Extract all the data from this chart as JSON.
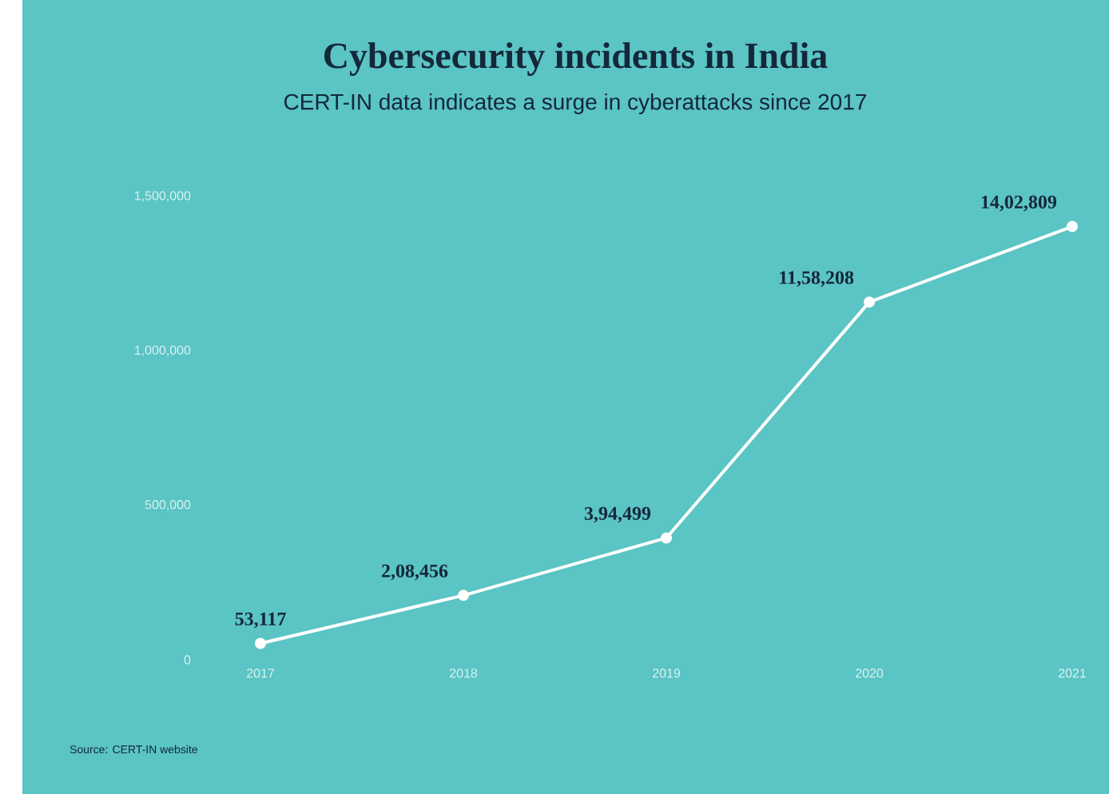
{
  "chart_data": {
    "type": "line",
    "title": "Cybersecurity incidents in India",
    "subtitle": "CERT-IN data indicates a surge in cyberattacks since 2017",
    "categories": [
      "2017",
      "2018",
      "2019",
      "2020",
      "2021"
    ],
    "series": [
      {
        "color": "#ffffff",
        "values": [
          53117,
          208456,
          394499,
          1158208,
          1402809
        ],
        "value_labels": [
          "53,117",
          "2,08,456",
          "3,94,499",
          "11,58,208",
          "14,02,809"
        ]
      }
    ],
    "ylim": [
      0,
      1500000
    ],
    "yticks": [
      0,
      {
        "value": 500000,
        "label": "500,000"
      },
      {
        "value": 1000000,
        "label": "1,000,000"
      },
      {
        "value": 1500000,
        "label": "1,500,000"
      }
    ],
    "marker": "circle",
    "line_style": "solid",
    "annotations": [
      "Source: CERT-IN website"
    ]
  }
}
